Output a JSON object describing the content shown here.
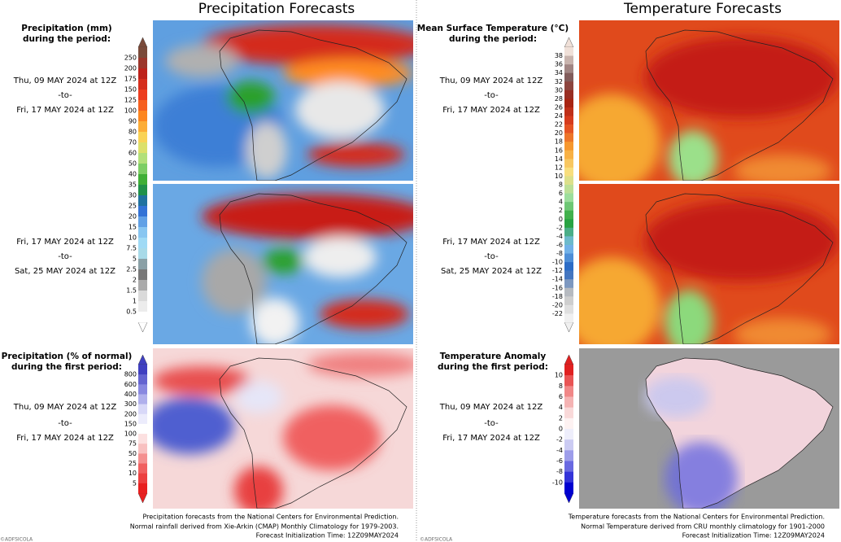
{
  "precipitation": {
    "title": "Precipitation Forecasts",
    "amount": {
      "label": [
        "Precipitation (mm)",
        "during the period:"
      ],
      "colorbar": [
        "250",
        "200",
        "175",
        "150",
        "125",
        "100",
        "90",
        "80",
        "70",
        "60",
        "50",
        "40",
        "35",
        "30",
        "25",
        "20",
        "15",
        "10",
        "7.5",
        "5",
        "2.5",
        "2",
        "1.5",
        "1",
        "0.5"
      ]
    },
    "periods": [
      {
        "from": "Thu, 09 MAY 2024 at 12Z",
        "separator": "-to-",
        "until": "Fri, 17 MAY 2024 at 12Z"
      },
      {
        "from": "Fri, 17 MAY 2024 at 12Z",
        "separator": "-to-",
        "until": "Sat, 25 MAY 2024 at 12Z"
      }
    ],
    "percent": {
      "label": [
        "Precipitation (% of normal)",
        "during the first period:"
      ],
      "colorbar": [
        "800",
        "600",
        "400",
        "300",
        "200",
        "150",
        "100",
        "75",
        "50",
        "25",
        "10",
        "5"
      ],
      "period": {
        "from": "Thu, 09 MAY 2024 at 12Z",
        "separator": "-to-",
        "until": "Fri, 17 MAY 2024 at 12Z"
      }
    },
    "footer": [
      "Precipitation forecasts from the National Centers for Environmental Prediction.",
      "Normal rainfall derived from Xie-Arkin (CMAP) Monthly Climatology for 1979-2003.",
      "Forecast Initialization Time: 12Z09MAY2024"
    ],
    "credit": "©ADFSICOLA"
  },
  "temperature": {
    "title": "Temperature Forecasts",
    "amount": {
      "label": [
        "Mean Surface Temperature (°C)",
        "during the period:"
      ],
      "colorbar": [
        "38",
        "36",
        "34",
        "32",
        "30",
        "28",
        "26",
        "24",
        "22",
        "20",
        "18",
        "16",
        "14",
        "12",
        "10",
        "8",
        "6",
        "4",
        "2",
        "0",
        "-2",
        "-4",
        "-6",
        "-8",
        "-10",
        "-12",
        "-14",
        "-16",
        "-18",
        "-20",
        "-22"
      ]
    },
    "periods": [
      {
        "from": "Thu, 09 MAY 2024 at 12Z",
        "separator": "-to-",
        "until": "Fri, 17 MAY 2024 at 12Z"
      },
      {
        "from": "Fri, 17 MAY 2024 at 12Z",
        "separator": "-to-",
        "until": "Sat, 25 MAY 2024 at 12Z"
      }
    ],
    "percent": {
      "label": [
        "Temperature Anomaly",
        "during the first period:"
      ],
      "colorbar": [
        "10",
        "8",
        "6",
        "4",
        "2",
        "0",
        "-2",
        "-4",
        "-6",
        "-8",
        "-10"
      ],
      "period": {
        "from": "Thu, 09 MAY 2024 at 12Z",
        "separator": "-to-",
        "until": "Fri, 17 MAY 2024 at 12Z"
      }
    },
    "footer": [
      "Temperature forecasts from the National Centers for Environmental Prediction.",
      "Normal Temperature derived from CRU monthly climatology for 1901-2000",
      "Forecast Initialization Time: 12Z09MAY2024"
    ],
    "credit": "©ADFSICOLA"
  }
}
